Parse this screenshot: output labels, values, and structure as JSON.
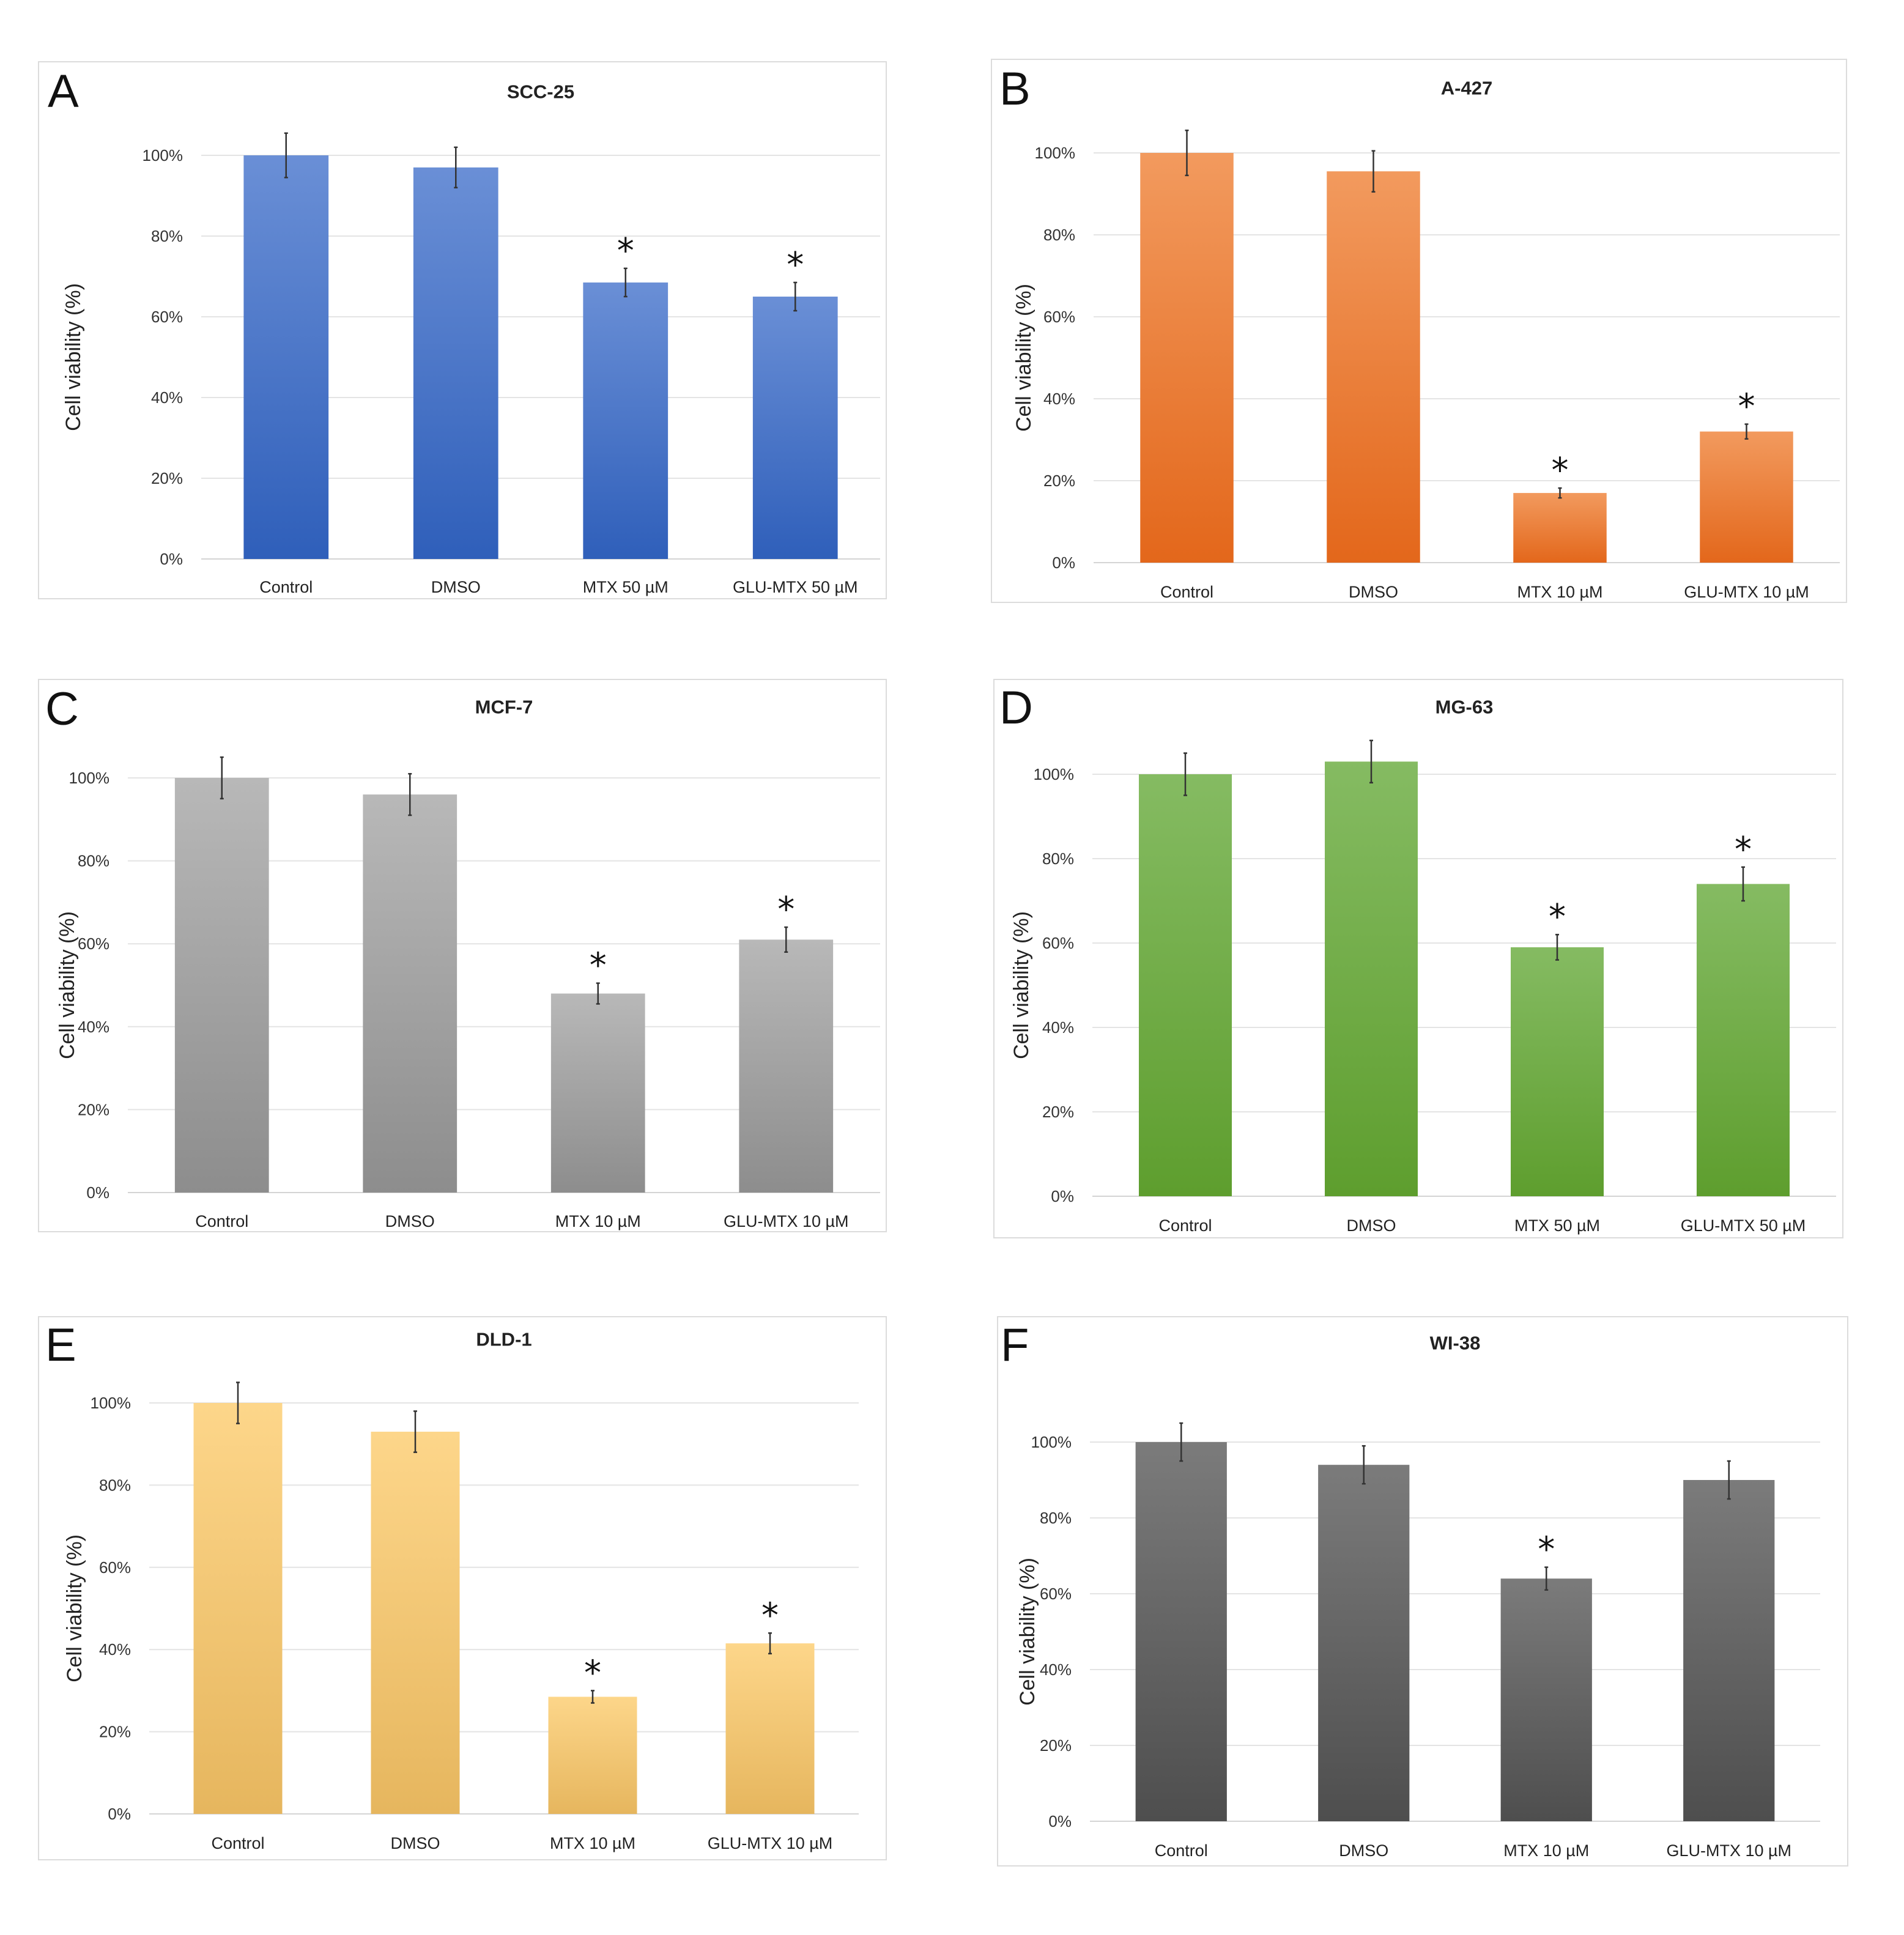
{
  "chart_data": [
    {
      "panel": "A",
      "type": "bar",
      "title": "SCC-25",
      "categories": [
        "Control",
        "DMSO",
        "MTX 50 µM",
        "GLU-MTX 50 µM"
      ],
      "values": [
        100,
        97,
        68.5,
        65
      ],
      "errors": [
        5.5,
        5,
        3.5,
        3.5
      ],
      "significant": [
        false,
        false,
        true,
        true
      ],
      "ylabel": "Cell viability (%)",
      "ylim": [
        0,
        100
      ],
      "yticks": [
        "0%",
        "20%",
        "40%",
        "60%",
        "80%",
        "100%"
      ],
      "colors": [
        "#6a8fd6",
        "#2f5fba"
      ]
    },
    {
      "panel": "B",
      "type": "bar",
      "title": "A-427",
      "categories": [
        "Control",
        "DMSO",
        "MTX 10 µM",
        "GLU-MTX 10 µM"
      ],
      "values": [
        100,
        95.5,
        17,
        32
      ],
      "errors": [
        5.5,
        5,
        1.2,
        1.8
      ],
      "significant": [
        false,
        false,
        true,
        true
      ],
      "ylabel": "Cell viability (%)",
      "ylim": [
        0,
        100
      ],
      "yticks": [
        "0%",
        "20%",
        "40%",
        "60%",
        "80%",
        "100%"
      ],
      "colors": [
        "#f29a5e",
        "#e3671b"
      ]
    },
    {
      "panel": "C",
      "type": "bar",
      "title": "MCF-7",
      "categories": [
        "Control",
        "DMSO",
        "MTX 10 µM",
        "GLU-MTX 10 µM"
      ],
      "values": [
        100,
        96,
        48,
        61
      ],
      "errors": [
        5,
        5,
        2.5,
        3
      ],
      "significant": [
        false,
        false,
        true,
        true
      ],
      "ylabel": "Cell viability (%)",
      "ylim": [
        0,
        100
      ],
      "yticks": [
        "0%",
        "20%",
        "40%",
        "60%",
        "80%",
        "100%"
      ],
      "colors": [
        "#b8b8b8",
        "#8d8d8d"
      ]
    },
    {
      "panel": "D",
      "type": "bar",
      "title": "MG-63",
      "categories": [
        "Control",
        "DMSO",
        "MTX 50 µM",
        "GLU-MTX 50 µM"
      ],
      "values": [
        100,
        103,
        59,
        74
      ],
      "errors": [
        5,
        5,
        3,
        4
      ],
      "significant": [
        false,
        false,
        true,
        true
      ],
      "ylabel": "Cell viability (%)",
      "ylim": [
        0,
        100
      ],
      "yticks": [
        "0%",
        "20%",
        "40%",
        "60%",
        "80%",
        "100%"
      ],
      "colors": [
        "#85bb62",
        "#5e9e2e"
      ]
    },
    {
      "panel": "E",
      "type": "bar",
      "title": "DLD-1",
      "categories": [
        "Control",
        "DMSO",
        "MTX 10 µM",
        "GLU-MTX 10 µM"
      ],
      "values": [
        100,
        93,
        28.5,
        41.5
      ],
      "errors": [
        5,
        5,
        1.5,
        2.5
      ],
      "significant": [
        false,
        false,
        true,
        true
      ],
      "ylabel": "Cell viability (%)",
      "ylim": [
        0,
        100
      ],
      "yticks": [
        "0%",
        "20%",
        "40%",
        "60%",
        "80%",
        "100%"
      ],
      "colors": [
        "#fdd68a",
        "#e6b65e"
      ]
    },
    {
      "panel": "F",
      "type": "bar",
      "title": "WI-38",
      "categories": [
        "Control",
        "DMSO",
        "MTX 10 µM",
        "GLU-MTX 10 µM"
      ],
      "values": [
        100,
        94,
        64,
        90
      ],
      "errors": [
        5,
        5,
        3,
        5
      ],
      "significant": [
        false,
        false,
        true,
        false
      ],
      "ylabel": "Cell viability (%)",
      "ylim": [
        0,
        100
      ],
      "yticks": [
        "0%",
        "20%",
        "40%",
        "60%",
        "80%",
        "100%"
      ],
      "colors": [
        "#7b7b7b",
        "#4e4e4e"
      ]
    }
  ],
  "significance_marker": "*"
}
